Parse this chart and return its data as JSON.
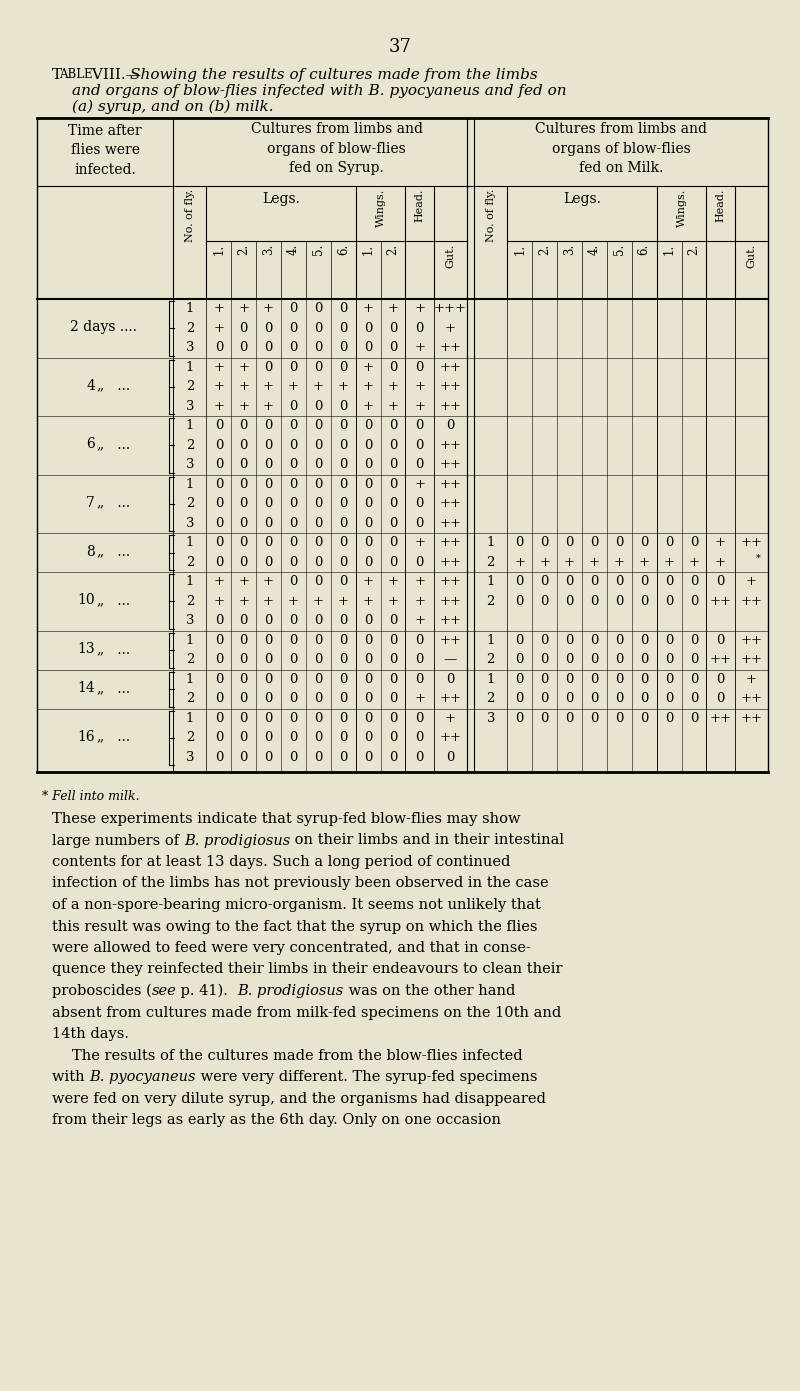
{
  "page_number": "37",
  "bg_color": "#e8e4d0",
  "footnote": "* Fell into milk.",
  "rows": [
    {
      "time": "2 days ....",
      "fly_nums": [
        1,
        2,
        3
      ],
      "syrup": [
        [
          "+",
          "+",
          "+",
          "0",
          "0",
          "0",
          "+",
          "+",
          "+",
          "+++"
        ],
        [
          "+",
          "0",
          "0",
          "0",
          "0",
          "0",
          "0",
          "0",
          "0",
          "+"
        ],
        [
          "0",
          "0",
          "0",
          "0",
          "0",
          "0",
          "0",
          "0",
          "+",
          "++"
        ]
      ],
      "milk_rows": []
    },
    {
      "time": "4",
      "time2": "„   ...",
      "fly_nums": [
        1,
        2,
        3
      ],
      "syrup": [
        [
          "+",
          "+",
          "0",
          "0",
          "0",
          "0",
          "+",
          "0",
          "0",
          "++"
        ],
        [
          "+",
          "+",
          "+",
          "+",
          "+",
          "+",
          "+",
          "+",
          "+",
          "++"
        ],
        [
          "+",
          "+",
          "+",
          "0",
          "0",
          "0",
          "+",
          "+",
          "+",
          "++"
        ]
      ],
      "milk_rows": []
    },
    {
      "time": "6",
      "time2": "„   ...",
      "fly_nums": [
        1,
        2,
        3
      ],
      "syrup": [
        [
          "0",
          "0",
          "0",
          "0",
          "0",
          "0",
          "0",
          "0",
          "0",
          "0"
        ],
        [
          "0",
          "0",
          "0",
          "0",
          "0",
          "0",
          "0",
          "0",
          "0",
          "++"
        ],
        [
          "0",
          "0",
          "0",
          "0",
          "0",
          "0",
          "0",
          "0",
          "0",
          "++"
        ]
      ],
      "milk_rows": []
    },
    {
      "time": "7",
      "time2": "„   ...",
      "fly_nums": [
        1,
        2,
        3
      ],
      "syrup": [
        [
          "0",
          "0",
          "0",
          "0",
          "0",
          "0",
          "0",
          "0",
          "+",
          "++"
        ],
        [
          "0",
          "0",
          "0",
          "0",
          "0",
          "0",
          "0",
          "0",
          "0",
          "++"
        ],
        [
          "0",
          "0",
          "0",
          "0",
          "0",
          "0",
          "0",
          "0",
          "0",
          "++"
        ]
      ],
      "milk_rows": []
    },
    {
      "time": "8",
      "time2": "„   ...",
      "fly_nums": [
        1,
        2
      ],
      "syrup": [
        [
          "0",
          "0",
          "0",
          "0",
          "0",
          "0",
          "0",
          "0",
          "+",
          "++"
        ],
        [
          "0",
          "0",
          "0",
          "0",
          "0",
          "0",
          "0",
          "0",
          "0",
          "++"
        ]
      ],
      "milk_rows": [
        [
          1,
          "0",
          "0",
          "0",
          "0",
          "0",
          "0",
          "0",
          "0",
          "+",
          "++"
        ],
        [
          2,
          "+",
          "+",
          "+",
          "+",
          "+",
          "+",
          "+",
          "+",
          "+",
          "*"
        ]
      ]
    },
    {
      "time": "10",
      "time2": "„   ...",
      "fly_nums": [
        1,
        2,
        3
      ],
      "syrup": [
        [
          "+",
          "+",
          "+",
          "0",
          "0",
          "0",
          "+",
          "+",
          "+",
          "++"
        ],
        [
          "+",
          "+",
          "+",
          "+",
          "+",
          "+",
          "+",
          "+",
          "+",
          "++"
        ],
        [
          "0",
          "0",
          "0",
          "0",
          "0",
          "0",
          "0",
          "0",
          "+",
          "++"
        ]
      ],
      "milk_rows": [
        [
          1,
          "0",
          "0",
          "0",
          "0",
          "0",
          "0",
          "0",
          "0",
          "0",
          "+"
        ],
        [
          2,
          "0",
          "0",
          "0",
          "0",
          "0",
          "0",
          "0",
          "0",
          "++",
          "++"
        ]
      ]
    },
    {
      "time": "13",
      "time2": "„   ...",
      "fly_nums": [
        1,
        2
      ],
      "syrup": [
        [
          "0",
          "0",
          "0",
          "0",
          "0",
          "0",
          "0",
          "0",
          "0",
          "++"
        ],
        [
          "0",
          "0",
          "0",
          "0",
          "0",
          "0",
          "0",
          "0",
          "0",
          "—"
        ]
      ],
      "milk_rows": [
        [
          1,
          "0",
          "0",
          "0",
          "0",
          "0",
          "0",
          "0",
          "0",
          "0",
          "++"
        ],
        [
          2,
          "0",
          "0",
          "0",
          "0",
          "0",
          "0",
          "0",
          "0",
          "++",
          "++"
        ]
      ]
    },
    {
      "time": "14",
      "time2": "„   ...",
      "fly_nums": [
        1,
        2
      ],
      "syrup": [
        [
          "0",
          "0",
          "0",
          "0",
          "0",
          "0",
          "0",
          "0",
          "0",
          "0"
        ],
        [
          "0",
          "0",
          "0",
          "0",
          "0",
          "0",
          "0",
          "0",
          "+",
          "++"
        ]
      ],
      "milk_rows": [
        [
          1,
          "0",
          "0",
          "0",
          "0",
          "0",
          "0",
          "0",
          "0",
          "0",
          "+"
        ],
        [
          2,
          "0",
          "0",
          "0",
          "0",
          "0",
          "0",
          "0",
          "0",
          "0",
          "++"
        ],
        [
          3,
          "0",
          "0",
          "0",
          "0",
          "0",
          "0",
          "0",
          "0",
          "++",
          "++"
        ]
      ]
    },
    {
      "time": "16",
      "time2": "„   ...",
      "fly_nums": [
        1,
        2,
        3
      ],
      "syrup": [
        [
          "0",
          "0",
          "0",
          "0",
          "0",
          "0",
          "0",
          "0",
          "0",
          "+"
        ],
        [
          "0",
          "0",
          "0",
          "0",
          "0",
          "0",
          "0",
          "0",
          "0",
          "++"
        ],
        [
          "0",
          "0",
          "0",
          "0",
          "0",
          "0",
          "0",
          "0",
          "0",
          "0"
        ]
      ],
      "milk_rows": []
    }
  ],
  "body_text_lines": [
    {
      "text": "These experiments indicate that syrup-fed blow-flies may show",
      "indent": 0
    },
    {
      "text": "large numbers of ",
      "italic_part": "B. prodigiosus",
      "text2": " on their limbs and in their intestinal",
      "indent": 0
    },
    {
      "text": "contents for at least 13 days. Such a long period of continued",
      "indent": 0
    },
    {
      "text": "infection of the limbs has not previously been observed in the case",
      "indent": 0
    },
    {
      "text": "of a non-spore-bearing micro-organism. It seems not unlikely that",
      "indent": 0
    },
    {
      "text": "this result was owing to the fact that the syrup on which the flies",
      "indent": 0
    },
    {
      "text": "were allowed to feed were very concentrated, and that in conse-",
      "indent": 0
    },
    {
      "text": "quence they reinfected their limbs in their endeavours to clean their",
      "indent": 0
    },
    {
      "text": "proboscides (",
      "italic_part": "see",
      "text2": " p. 41).  ",
      "italic_part2": "B. prodigiosus",
      "text3": " was on the other hand",
      "indent": 0
    },
    {
      "text": "absent from cultures made from milk-fed specimens on the 10th and",
      "indent": 0
    },
    {
      "text": "14th days.",
      "indent": 0
    },
    {
      "text": "The results of the cultures made from the blow-flies infected",
      "indent": 2
    },
    {
      "text": "with ",
      "italic_part": "B. pyocyaneus",
      "text2": " were very different. The syrup-fed specimens",
      "indent": 0
    },
    {
      "text": "were fed on very dilute syrup, and the organisms had disappeared",
      "indent": 0
    },
    {
      "text": "from their legs as early as the 6th day. Only on one occasion",
      "indent": 0
    }
  ]
}
